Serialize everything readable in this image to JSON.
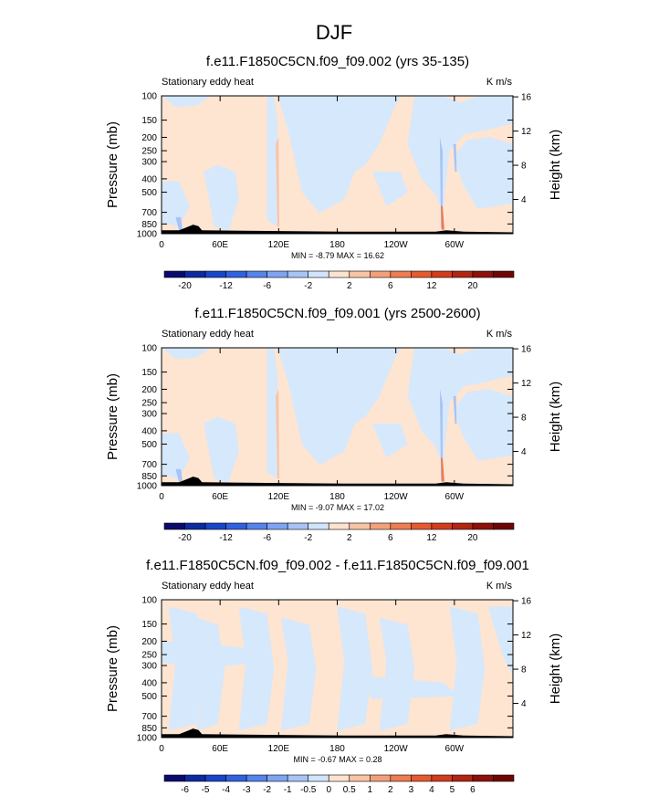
{
  "figure": {
    "title": "DJF"
  },
  "chart_data": [
    {
      "type": "heatmap",
      "title": "f.e11.F1850C5CN.f09_f09.002 (yrs 35-135)",
      "left_label": "Stationary eddy heat",
      "units": "K m/s",
      "ylabel": "Pressure (mb)",
      "y2label": "Height (km)",
      "xticks": [
        "0",
        "60E",
        "120E",
        "180",
        "120W",
        "60W"
      ],
      "yticks": [
        "100",
        "150",
        "200",
        "250",
        "300",
        "400",
        "500",
        "700",
        "850",
        "1000"
      ],
      "y2ticks": [
        "4",
        "8",
        "12",
        "16"
      ],
      "min": -8.79,
      "max": 16.62,
      "minmax_text": "MIN = -8.79  MAX = 16.62",
      "colorbar_labels": [
        "-20",
        "-12",
        "-6",
        "-2",
        "2",
        "6",
        "12",
        "20"
      ],
      "colorbar_label_boxes": [
        1,
        3,
        5,
        7,
        9,
        11,
        13,
        15
      ],
      "colors": [
        "#0a0a6e",
        "#0d2aa0",
        "#1846c8",
        "#2f62e0",
        "#5584ec",
        "#7ea4f2",
        "#a8c4f6",
        "#d2e4fb",
        "#fde3cf",
        "#f8c4a4",
        "#f3a07a",
        "#ee7c52",
        "#e65a30",
        "#d23d1c",
        "#b22512",
        "#8e1109",
        "#6e0606"
      ],
      "field": {
        "neutral_pos": "#fde5d2",
        "neutral_neg": "#d6e8fb",
        "pattern": "full"
      }
    },
    {
      "type": "heatmap",
      "title": "f.e11.F1850C5CN.f09_f09.001 (yrs 2500-2600)",
      "left_label": "Stationary eddy heat",
      "units": "K m/s",
      "ylabel": "Pressure (mb)",
      "y2label": "Height (km)",
      "xticks": [
        "0",
        "60E",
        "120E",
        "180",
        "120W",
        "60W"
      ],
      "yticks": [
        "100",
        "150",
        "200",
        "250",
        "300",
        "400",
        "500",
        "700",
        "850",
        "1000"
      ],
      "y2ticks": [
        "4",
        "8",
        "12",
        "16"
      ],
      "min": -9.07,
      "max": 17.02,
      "minmax_text": "MIN = -9.07  MAX = 17.02",
      "colorbar_labels": [
        "-20",
        "-12",
        "-6",
        "-2",
        "2",
        "6",
        "12",
        "20"
      ],
      "colorbar_label_boxes": [
        1,
        3,
        5,
        7,
        9,
        11,
        13,
        15
      ],
      "colors": [
        "#0a0a6e",
        "#0d2aa0",
        "#1846c8",
        "#2f62e0",
        "#5584ec",
        "#7ea4f2",
        "#a8c4f6",
        "#d2e4fb",
        "#fde3cf",
        "#f8c4a4",
        "#f3a07a",
        "#ee7c52",
        "#e65a30",
        "#d23d1c",
        "#b22512",
        "#8e1109",
        "#6e0606"
      ],
      "field": {
        "neutral_pos": "#fde5d2",
        "neutral_neg": "#d6e8fb",
        "pattern": "full"
      }
    },
    {
      "type": "heatmap",
      "title": "f.e11.F1850C5CN.f09_f09.002 - f.e11.F1850C5CN.f09_f09.001",
      "left_label": "Stationary eddy heat",
      "units": "K m/s",
      "ylabel": "Pressure (mb)",
      "y2label": "Height (km)",
      "xticks": [
        "0",
        "60E",
        "120E",
        "180",
        "120W",
        "60W"
      ],
      "yticks": [
        "100",
        "150",
        "200",
        "250",
        "300",
        "400",
        "500",
        "700",
        "850",
        "1000"
      ],
      "y2ticks": [
        "4",
        "8",
        "12",
        "16"
      ],
      "min": -0.67,
      "max": 0.28,
      "minmax_text": "MIN = -0.67  MAX = 0.28",
      "colorbar_labels": [
        "-6",
        "-5",
        "-4",
        "-3",
        "-2",
        "-1",
        "-0.5",
        "0",
        "0.5",
        "1",
        "2",
        "3",
        "4",
        "5",
        "6"
      ],
      "colorbar_label_boxes": [
        1,
        2,
        3,
        4,
        5,
        6,
        7,
        8,
        9,
        10,
        11,
        12,
        13,
        14,
        15
      ],
      "colors": [
        "#0a0a6e",
        "#0d2aa0",
        "#1846c8",
        "#2f62e0",
        "#5584ec",
        "#7ea4f2",
        "#a8c4f6",
        "#d2e4fb",
        "#fde3cf",
        "#f8c4a4",
        "#f3a07a",
        "#ee7c52",
        "#e65a30",
        "#d23d1c",
        "#b22512",
        "#8e1109",
        "#6e0606"
      ],
      "field": {
        "neutral_pos": "#fde5d2",
        "neutral_neg": "#d6e8fb",
        "pattern": "diff"
      }
    }
  ]
}
